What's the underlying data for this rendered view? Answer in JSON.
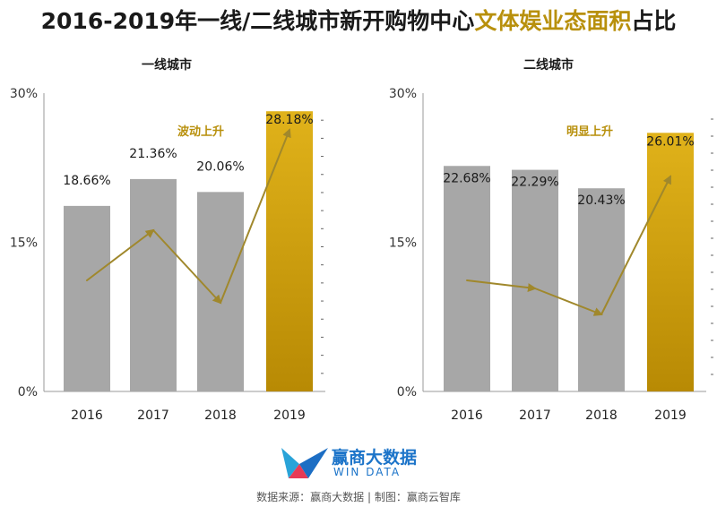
{
  "title": {
    "part1": "2016-2019年一线/二线城市新开购物中心",
    "part2": "文体娱业态面积",
    "part3": "占比"
  },
  "colors": {
    "gray_bar": "#a7a7a7",
    "gold_bar": "#c99a06",
    "arrow": "#a0882c",
    "annotation": "#b8900c"
  },
  "chart_data": [
    {
      "type": "bar",
      "title": "一线城市",
      "categories": [
        "2016",
        "2017",
        "2018",
        "2019"
      ],
      "values": [
        18.66,
        21.36,
        20.06,
        28.18
      ],
      "value_labels": [
        "18.66%",
        "21.36%",
        "20.06%",
        "28.18%"
      ],
      "yticks": [
        "0%",
        "15%",
        "30%"
      ],
      "ylim": [
        0,
        30
      ],
      "highlight_index": 3,
      "annotation": "波动上升"
    },
    {
      "type": "bar",
      "title": "二线城市",
      "categories": [
        "2016",
        "2017",
        "2018",
        "2019"
      ],
      "values": [
        22.68,
        22.29,
        20.43,
        26.01
      ],
      "value_labels": [
        "22.68%",
        "22.29%",
        "20.43%",
        "26.01%"
      ],
      "yticks": [
        "0%",
        "15%",
        "30%"
      ],
      "ylim": [
        0,
        30
      ],
      "highlight_index": 3,
      "annotation": "明显上升"
    }
  ],
  "logo": {
    "name": "赢商大数据",
    "subtitle": "WIN DATA"
  },
  "footer": "数据来源：赢商大数据 | 制图：赢商云智库"
}
